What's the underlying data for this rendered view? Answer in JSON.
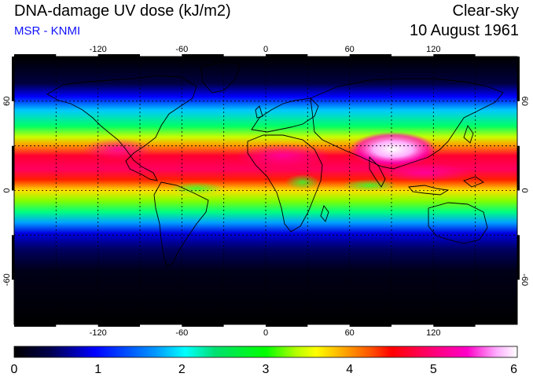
{
  "header": {
    "title": "DNA-damage UV dose (kJ/m2)",
    "source": "MSR - KNMI",
    "sky_condition": "Clear-sky",
    "date": "10 August 1961"
  },
  "colors": {
    "source_text": "#1010ff",
    "grid": "#000000",
    "colorbar": [
      "#000000",
      "#00004a",
      "#0000ff",
      "#0096ff",
      "#00ffff",
      "#00e070",
      "#00ff00",
      "#b4ff00",
      "#ffff00",
      "#ffb000",
      "#ff5000",
      "#ff0000",
      "#ff0080",
      "#ff00c8",
      "#ffb0ff",
      "#ffffff"
    ]
  },
  "map": {
    "projection": "equirectangular",
    "lon_range": [
      -180,
      180
    ],
    "lat_range": [
      -90,
      90
    ],
    "lon_ticks": [
      "-120",
      "-60",
      "0",
      "60",
      "120"
    ],
    "lat_ticks": [
      "60",
      "0",
      "-60"
    ],
    "gridlines": "dotted, every 30 degrees"
  },
  "colorbar": {
    "min": 0,
    "max": 6,
    "labels": [
      "0",
      "1",
      "2",
      "3",
      "4",
      "5",
      "6"
    ]
  }
}
